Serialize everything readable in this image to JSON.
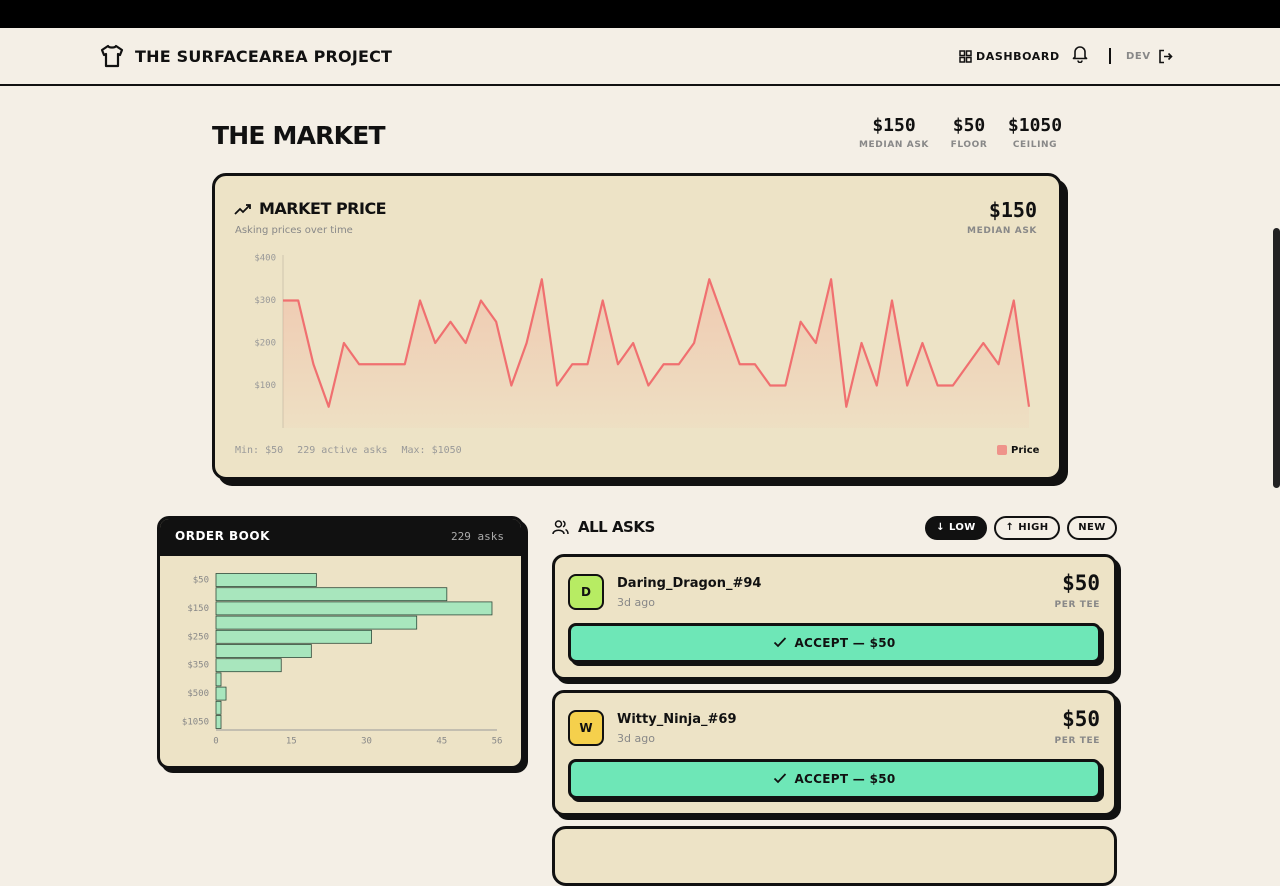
{
  "header": {
    "brand": "THE SURFACEAREA PROJECT",
    "nav": "DASHBOARD",
    "user": "DEV"
  },
  "market": {
    "title": "THE MARKET",
    "stats": [
      {
        "value": "$150",
        "label": "MEDIAN ASK"
      },
      {
        "value": "$50",
        "label": "FLOOR"
      },
      {
        "value": "$1050",
        "label": "CEILING"
      }
    ]
  },
  "chart_data": [
    {
      "type": "line",
      "title": "MARKET PRICE",
      "subtitle": "Asking prices over time",
      "headline": "$150",
      "headline_label": "MEDIAN ASK",
      "series": [
        {
          "name": "Price",
          "color": "#f07070",
          "values": [
            300,
            300,
            150,
            50,
            200,
            150,
            150,
            150,
            150,
            300,
            200,
            250,
            200,
            300,
            250,
            100,
            200,
            350,
            100,
            150,
            150,
            300,
            150,
            200,
            100,
            150,
            150,
            200,
            350,
            250,
            150,
            150,
            100,
            100,
            250,
            200,
            350,
            50,
            200,
            100,
            300,
            100,
            200,
            100,
            100,
            150,
            200,
            150,
            300,
            50
          ]
        }
      ],
      "ylim": [
        0,
        400
      ],
      "yticks": [
        {
          "value": 100,
          "label": "$100"
        },
        {
          "value": 200,
          "label": "$200"
        },
        {
          "value": 300,
          "label": "$300"
        },
        {
          "value": 400,
          "label": "$400"
        }
      ],
      "footer": [
        "Min: $50",
        "229 active asks",
        "Max: $1050"
      ]
    },
    {
      "type": "hbar",
      "title": "ORDER BOOK",
      "subtitle": "229 asks",
      "categories": [
        "$50",
        null,
        "$150",
        null,
        "$250",
        null,
        "$350",
        null,
        "$500",
        null,
        "$1050"
      ],
      "series": [
        {
          "color": "#a8e6bd",
          "values": [
            20,
            46,
            55,
            40,
            31,
            19,
            13,
            1,
            2,
            1,
            1
          ]
        }
      ],
      "xlim": [
        0,
        56
      ],
      "xticks": [
        0,
        15,
        30,
        45,
        56
      ]
    }
  ],
  "asks": {
    "title": "ALL ASKS",
    "sort": [
      "↓ LOW",
      "↑ HIGH",
      "NEW"
    ],
    "items": [
      {
        "initial": "D",
        "name": "Daring_Dragon_#94",
        "age": "3d ago",
        "price": "$50",
        "unit": "PER TEE",
        "action": "ACCEPT — $50",
        "color": "#b7ec63"
      },
      {
        "initial": "W",
        "name": "Witty_Ninja_#69",
        "age": "3d ago",
        "price": "$50",
        "unit": "PER TEE",
        "action": "ACCEPT — $50",
        "color": "#f5d04c"
      }
    ]
  }
}
